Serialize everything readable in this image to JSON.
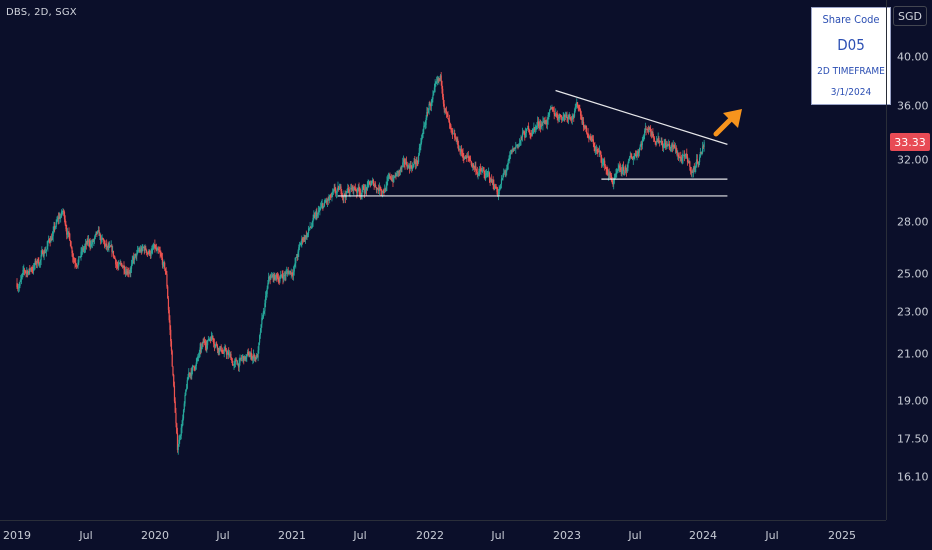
{
  "header": {
    "symbol_line": "DBS, 2D, SGX"
  },
  "price_scale": {
    "currency": "SGD",
    "last_price": "33.33"
  },
  "annotation_box": {
    "line1": "Share Code",
    "line2": "D05",
    "line3": "2D TIMEFRAME",
    "line4": "3/1/2024"
  },
  "colors": {
    "background": "#0b0f2a",
    "up": "#26a69a",
    "down": "#ef5350",
    "trendline": "#ffffff",
    "arrow": "#f7941d",
    "last_price_bg": "#e84b55"
  },
  "chart_data": {
    "type": "candlestick",
    "title": "DBS, 2D, SGX",
    "y_scale": "log",
    "ylim": [
      15.5,
      44.5
    ],
    "y_ticks": [
      "40.00",
      "36.00",
      "32.00",
      "28.00",
      "25.00",
      "23.00",
      "21.00",
      "19.00",
      "17.50",
      "16.10"
    ],
    "x_ticks": [
      "2019",
      "Jul",
      "2020",
      "Jul",
      "2021",
      "Jul",
      "2022",
      "Jul",
      "2023",
      "Jul",
      "2024",
      "Jul",
      "2025"
    ],
    "price_path": [
      [
        "2019-01",
        24.5
      ],
      [
        "2019-03",
        25.8
      ],
      [
        "2019-05",
        28.5
      ],
      [
        "2019-06",
        26.0
      ],
      [
        "2019-08",
        26.9
      ],
      [
        "2019-10",
        25.2
      ],
      [
        "2019-12",
        26.2
      ],
      [
        "2020-01",
        26.3
      ],
      [
        "2020-02",
        24.8
      ],
      [
        "2020-03",
        17.0
      ],
      [
        "2020-04",
        20.0
      ],
      [
        "2020-06",
        22.0
      ],
      [
        "2020-08",
        20.5
      ],
      [
        "2020-10",
        21.0
      ],
      [
        "2020-11",
        24.5
      ],
      [
        "2021-01",
        25.2
      ],
      [
        "2021-02",
        27.0
      ],
      [
        "2021-04",
        29.0
      ],
      [
        "2021-06",
        30.0
      ],
      [
        "2021-09",
        30.3
      ],
      [
        "2021-12",
        32.0
      ],
      [
        "2022-01",
        36.0
      ],
      [
        "2022-02",
        37.5
      ],
      [
        "2022-03",
        33.0
      ],
      [
        "2022-05",
        31.5
      ],
      [
        "2022-07",
        30.0
      ],
      [
        "2022-09",
        33.5
      ],
      [
        "2022-11",
        35.0
      ],
      [
        "2023-01",
        35.5
      ],
      [
        "2023-02",
        36.0
      ],
      [
        "2023-03",
        33.5
      ],
      [
        "2023-05",
        30.5
      ],
      [
        "2023-06",
        31.0
      ],
      [
        "2023-07",
        32.5
      ],
      [
        "2023-08",
        34.5
      ],
      [
        "2023-10",
        33.0
      ],
      [
        "2023-12",
        31.2
      ],
      [
        "2024-01",
        33.33
      ]
    ],
    "annotations": {
      "descending_trendline": [
        [
          "2022-12",
          37.2
        ],
        [
          "2024-03",
          33.1
        ]
      ],
      "support_line_1": [
        [
          "2023-04",
          30.7
        ],
        [
          "2024-03",
          30.7
        ]
      ],
      "support_line_2": [
        [
          "2021-05",
          29.6
        ],
        [
          "2024-03",
          29.6
        ]
      ],
      "breakout_arrow": "up-right"
    }
  }
}
